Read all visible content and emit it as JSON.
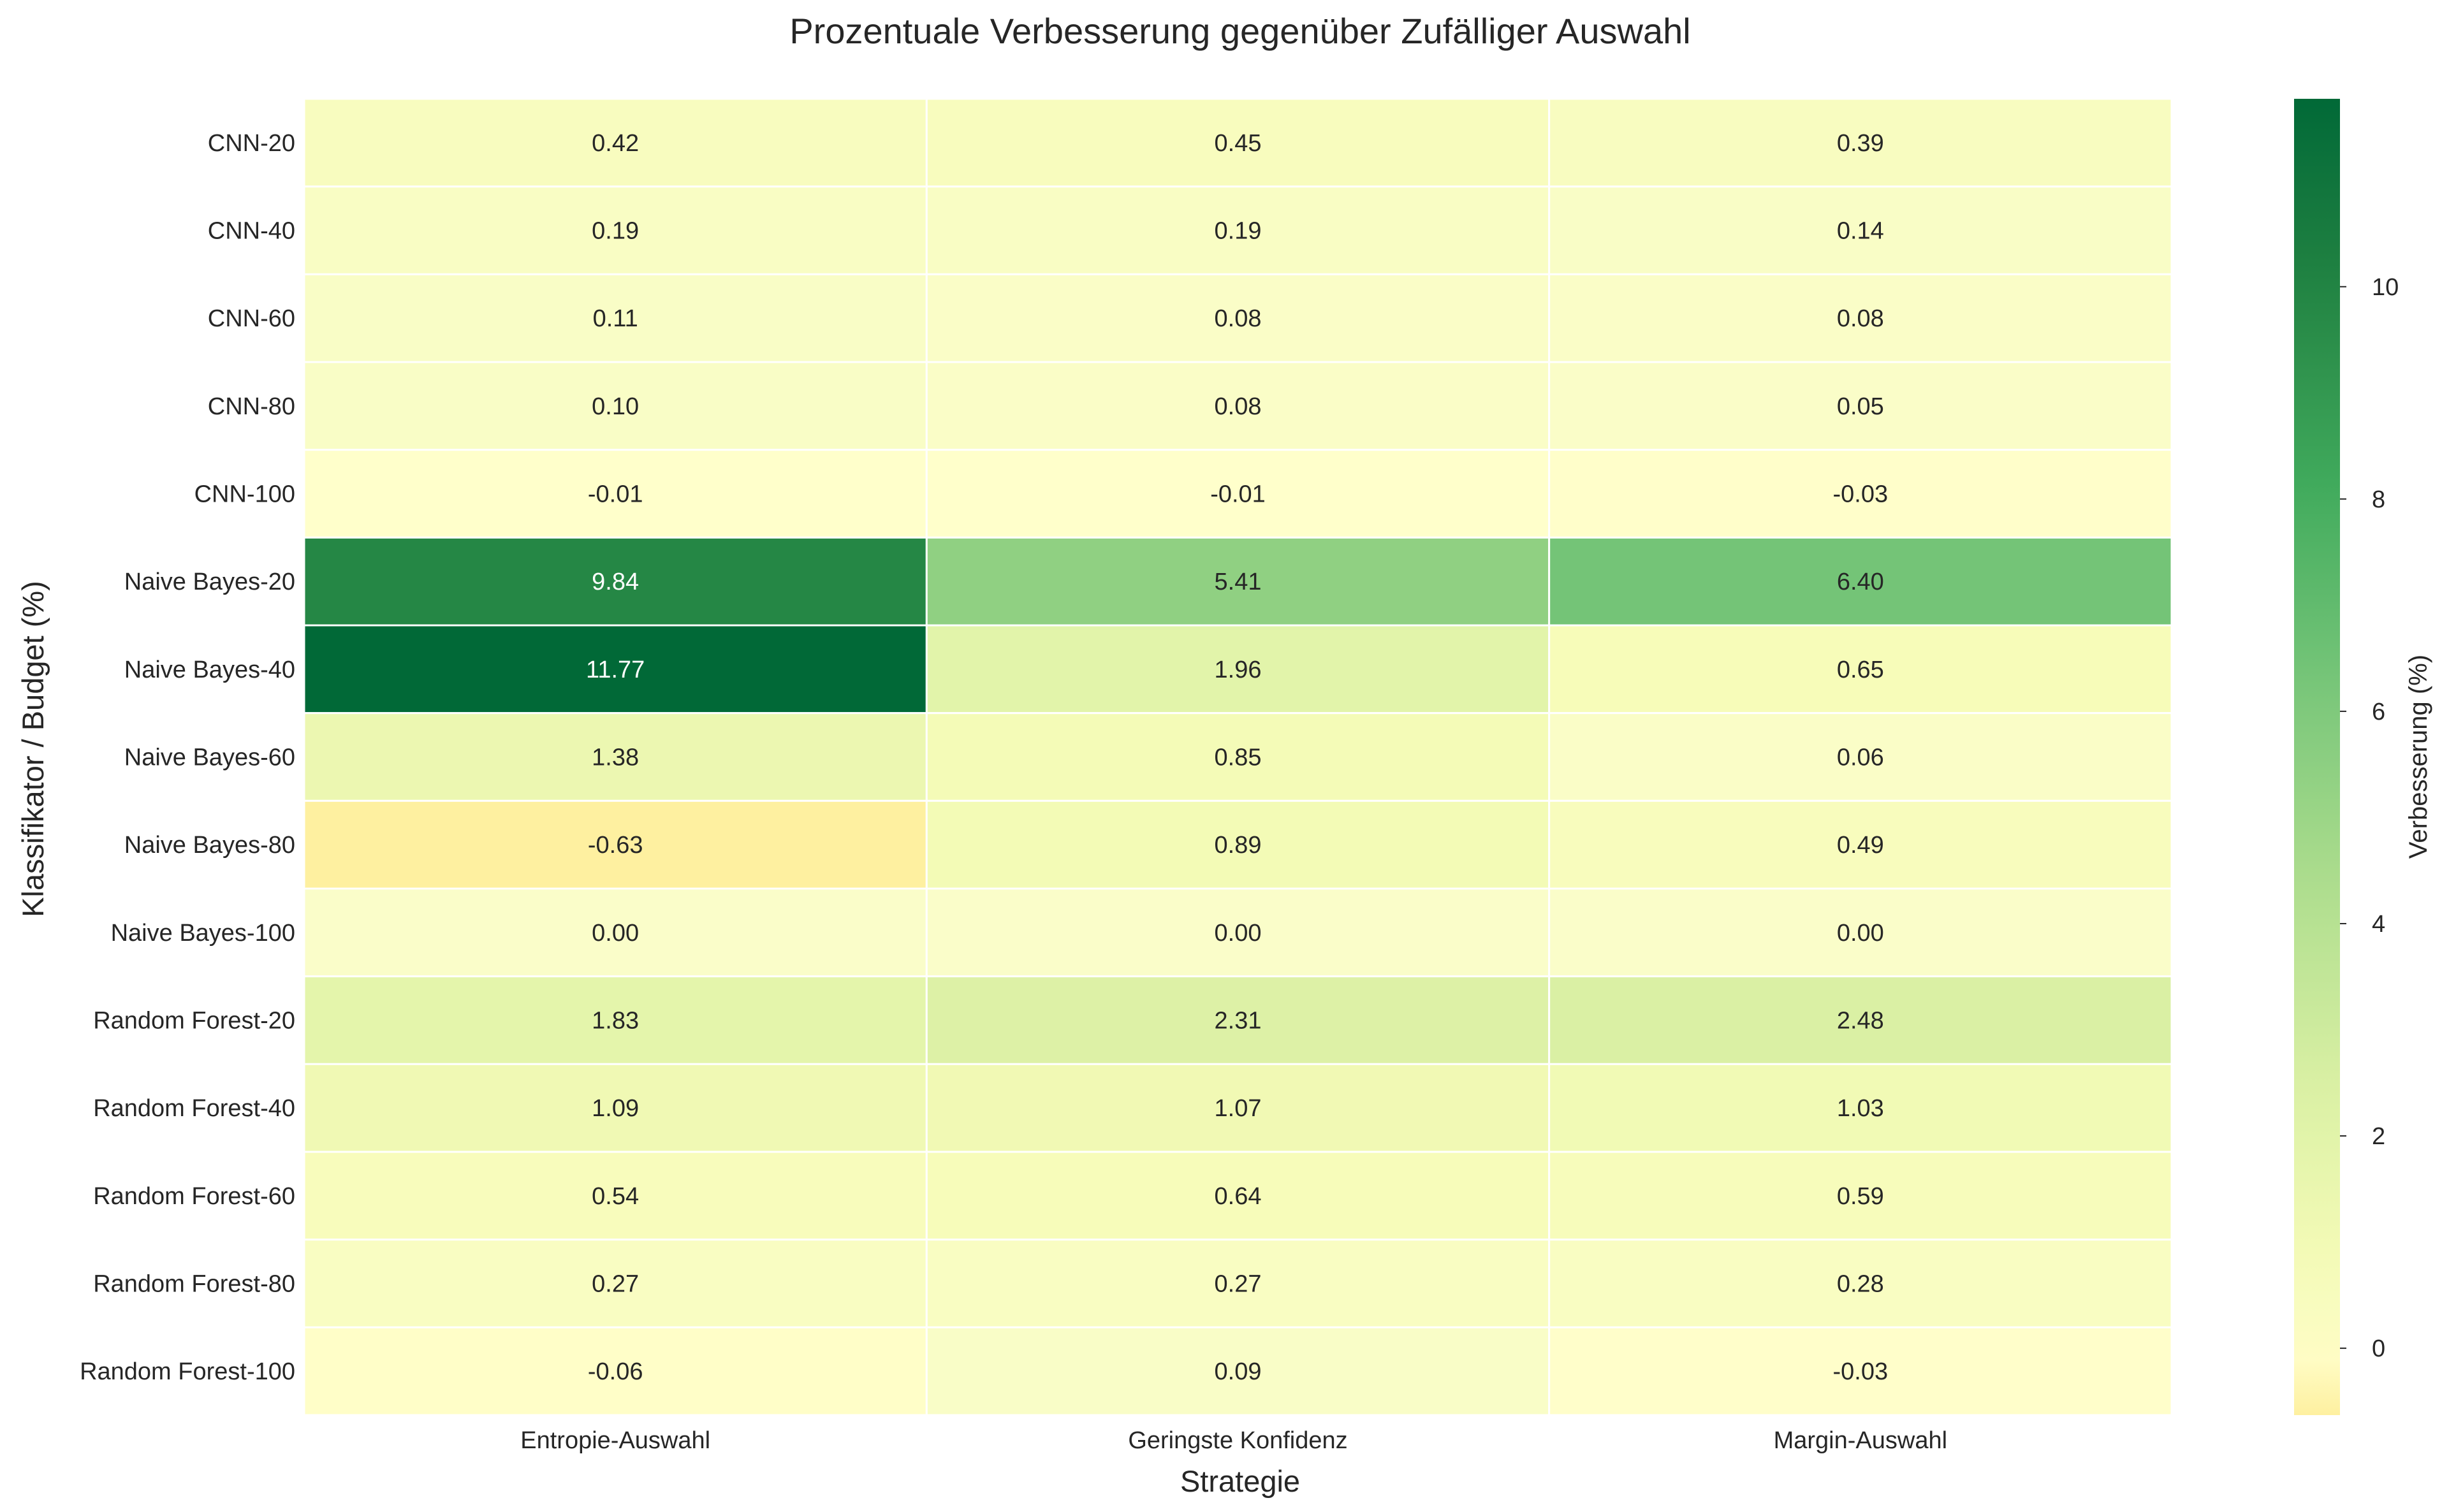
{
  "chart_data": {
    "type": "heatmap",
    "title": "Prozentuale Verbesserung gegenüber Zufälliger Auswahl",
    "xlabel": "Strategie",
    "ylabel": "Klassifikator / Budget (%)",
    "colorbar_label": "Verbesserung (%)",
    "colormap": "YlGn",
    "value_range": [
      -0.63,
      11.77
    ],
    "colorbar_ticks": [
      0,
      2,
      4,
      6,
      8,
      10
    ],
    "grid": false,
    "columns": [
      "Entropie-Auswahl",
      "Geringste Konfidenz",
      "Margin-Auswahl"
    ],
    "rows": [
      "CNN-20",
      "CNN-40",
      "CNN-60",
      "CNN-80",
      "CNN-100",
      "Naive Bayes-20",
      "Naive Bayes-40",
      "Naive Bayes-60",
      "Naive Bayes-80",
      "Naive Bayes-100",
      "Random Forest-20",
      "Random Forest-40",
      "Random Forest-60",
      "Random Forest-80",
      "Random Forest-100"
    ],
    "values": [
      [
        0.42,
        0.45,
        0.39
      ],
      [
        0.19,
        0.19,
        0.14
      ],
      [
        0.11,
        0.08,
        0.08
      ],
      [
        0.1,
        0.08,
        0.05
      ],
      [
        -0.01,
        -0.01,
        -0.03
      ],
      [
        9.84,
        5.41,
        6.4
      ],
      [
        11.77,
        1.96,
        0.65
      ],
      [
        1.38,
        0.85,
        0.06
      ],
      [
        -0.63,
        0.89,
        0.49
      ],
      [
        0.0,
        0.0,
        0.0
      ],
      [
        1.83,
        2.31,
        2.48
      ],
      [
        1.09,
        1.07,
        1.03
      ],
      [
        0.54,
        0.64,
        0.59
      ],
      [
        0.27,
        0.27,
        0.28
      ],
      [
        -0.06,
        0.09,
        -0.03
      ]
    ]
  }
}
